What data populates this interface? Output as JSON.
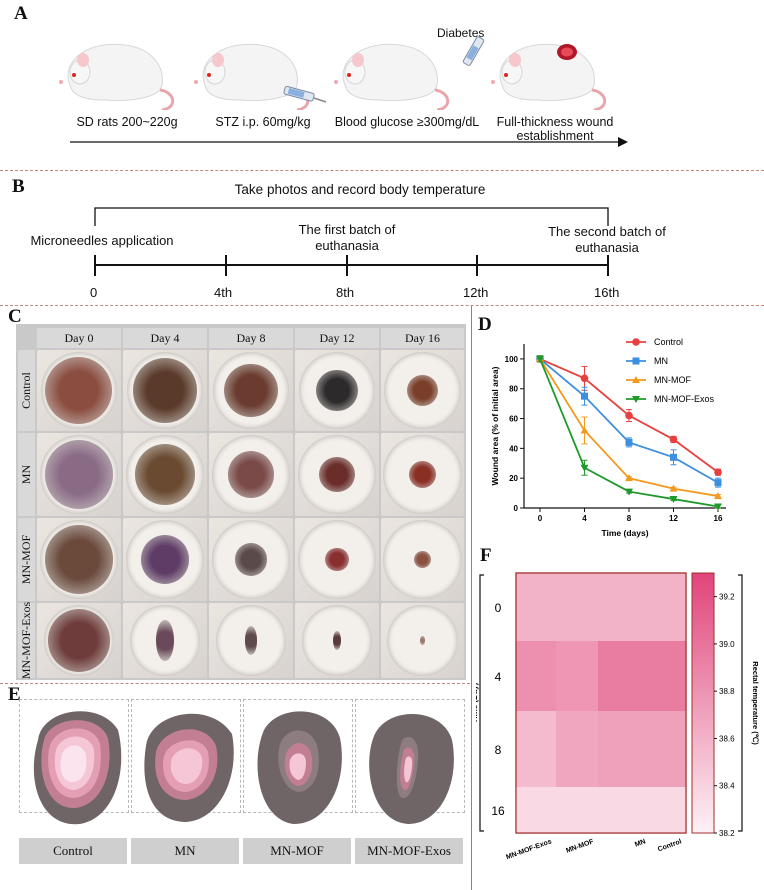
{
  "panels": {
    "a": "A",
    "b": "B",
    "c": "C",
    "d": "D",
    "e": "E",
    "f": "F"
  },
  "panel_a": {
    "steps": [
      "SD rats 200~220g",
      "STZ i.p. 60mg/kg",
      "Blood glucose ≥300mg/dL",
      "Full-thickness wound establishment"
    ],
    "diabetes_label": "Diabetes"
  },
  "panel_b": {
    "top_label": "Take photos and record body temperature",
    "events": {
      "start": "Microneedles application",
      "first": "The first batch of euthanasia",
      "second": "The second batch of euthanasia"
    },
    "ticks": [
      "0",
      "4th",
      "8th",
      "12th",
      "16th"
    ]
  },
  "panel_c": {
    "columns": [
      "Day 0",
      "Day 4",
      "Day 8",
      "Day 12",
      "Day 16"
    ],
    "rows": [
      "Control",
      "MN",
      "MN-MOF",
      "MN-MOF-Exos"
    ]
  },
  "panel_e": {
    "captions": [
      "Control",
      "MN",
      "MN-MOF",
      "MN-MOF-Exos"
    ]
  },
  "colors": {
    "control": "#e8403f",
    "mn": "#3d8fe0",
    "mn_mof": "#f39a1e",
    "mn_mof_exos": "#1f9a2a",
    "divider": "#b4765f",
    "heat_high": "#e0457a",
    "heat_low": "#fdf1f5"
  },
  "chart_data": [
    {
      "type": "line",
      "panel": "D",
      "xlabel": "Time (days)",
      "ylabel": "Wound area (% of initial area)",
      "x": [
        0,
        4,
        8,
        12,
        16
      ],
      "xticks": [
        "0",
        "4",
        "8",
        "12",
        "16"
      ],
      "yticks": [
        "0",
        "20",
        "40",
        "60",
        "80",
        "100"
      ],
      "ylim": [
        0,
        110
      ],
      "legend_position": "top-right",
      "series": [
        {
          "name": "Control",
          "values": [
            100,
            87,
            62,
            46,
            24
          ],
          "err": [
            2,
            8,
            4,
            2,
            2
          ]
        },
        {
          "name": "MN",
          "values": [
            100,
            75,
            44,
            34,
            17
          ],
          "err": [
            2,
            6,
            3,
            5,
            3
          ]
        },
        {
          "name": "MN-MOF",
          "values": [
            100,
            52,
            20,
            13,
            8
          ],
          "err": [
            2,
            9,
            1,
            1,
            1
          ]
        },
        {
          "name": "MN-MOF-Exos",
          "values": [
            100,
            27,
            11,
            6,
            1
          ],
          "err": [
            2,
            5,
            1,
            1,
            1
          ]
        }
      ]
    },
    {
      "type": "heatmap",
      "panel": "F",
      "ylabel": "Time (Day)",
      "rows": [
        "0",
        "4",
        "8",
        "16"
      ],
      "columns": [
        "MN-MOF-Exos",
        "MN-MOF",
        "MN",
        "Control"
      ],
      "values": [
        [
          38.6,
          38.6,
          38.6,
          38.6
        ],
        [
          38.82,
          38.78,
          38.95,
          38.95
        ],
        [
          38.55,
          38.68,
          38.72,
          38.72
        ],
        [
          38.35,
          38.35,
          38.35,
          38.35
        ]
      ],
      "colorbar_label": "Rectal temperature (℃)",
      "colorbar_range": [
        38.2,
        39.3
      ],
      "colorbar_ticks": [
        "38.2",
        "38.4",
        "38.6",
        "38.8",
        "39.0",
        "39.2"
      ]
    }
  ]
}
